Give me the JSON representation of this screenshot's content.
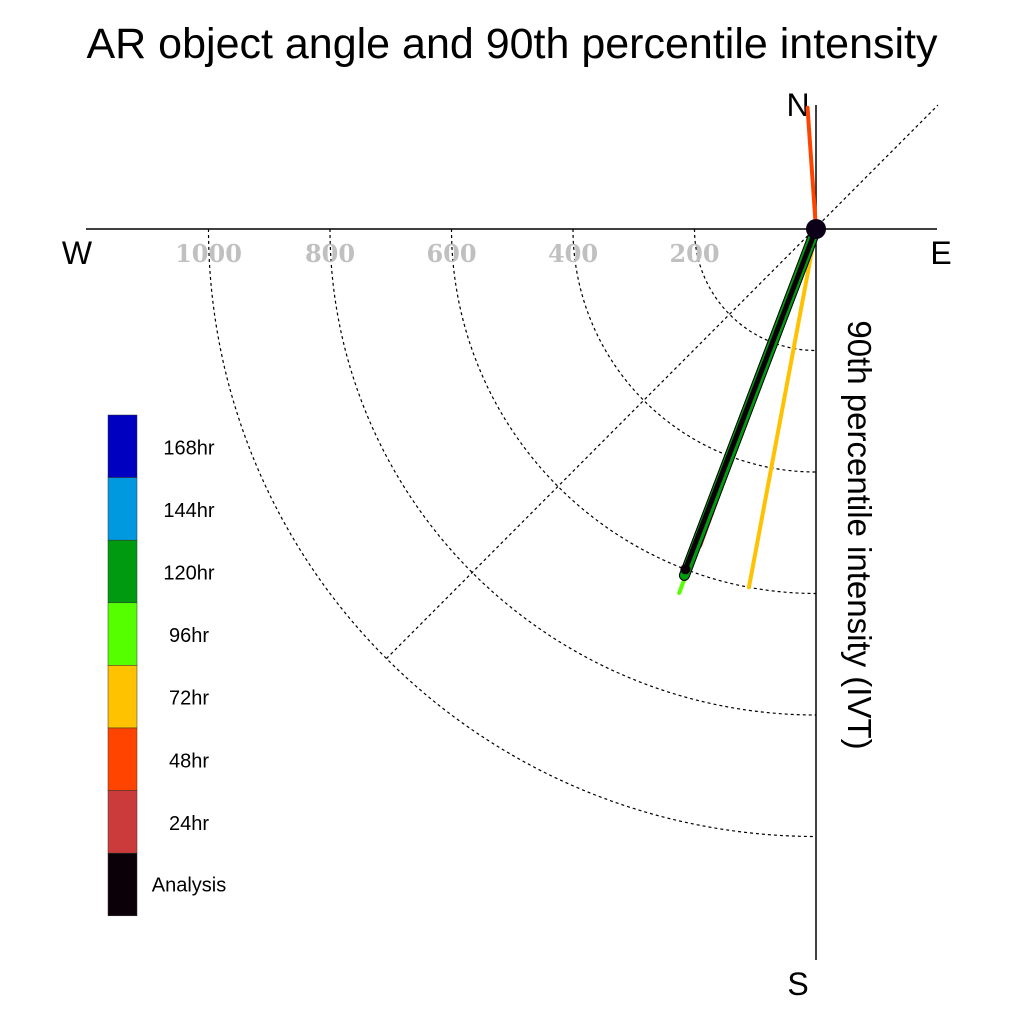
{
  "chart_data": {
    "type": "polar-vector",
    "title": "AR object angle and 90th percentile intensity",
    "ylabel": "90th percentile intensity (IVT)",
    "directions": {
      "north": "N",
      "south": "S",
      "east": "E",
      "west": "W"
    },
    "radial_ticks": [
      200,
      400,
      600,
      800,
      1000
    ],
    "radial_tick_labels": [
      "200",
      "400",
      "600",
      "800",
      "1000"
    ],
    "rlim": [
      0,
      1200
    ],
    "grid": true,
    "sector": "south-west quadrant",
    "legend_position": "left",
    "legend": [
      {
        "label": "168hr",
        "color": "#0000c0"
      },
      {
        "label": "144hr",
        "color": "#0099e0"
      },
      {
        "label": "120hr",
        "color": "#009a11"
      },
      {
        "label": "96hr",
        "color": "#55ff00"
      },
      {
        "label": "72hr",
        "color": "#ffc200"
      },
      {
        "label": "48hr",
        "color": "#ff4400"
      },
      {
        "label": "24hr",
        "color": "#cc3b3b"
      },
      {
        "label": "Analysis",
        "color": "#0c0008"
      }
    ],
    "series": [
      {
        "name": "48hr",
        "angle_deg": 356,
        "value": 200,
        "color": "#ff4400",
        "width": 4
      },
      {
        "name": "24hr",
        "angle_deg": 200.1,
        "value": 555,
        "color": "#cc3b3b",
        "width": 4
      },
      {
        "name": "72hr",
        "angle_deg": 190.6,
        "value": 600,
        "color": "#ffc200",
        "width": 4
      },
      {
        "name": "96hr",
        "angle_deg": 200.6,
        "value": 640,
        "color": "#55ff00",
        "width": 4
      },
      {
        "name": "120hr",
        "angle_deg": 200.8,
        "value": 610,
        "color": "#009a11",
        "width": 9
      },
      {
        "name": "Analysis",
        "angle_deg": 201.0,
        "value": 600,
        "color": "#0c0008",
        "width": 5
      }
    ]
  }
}
